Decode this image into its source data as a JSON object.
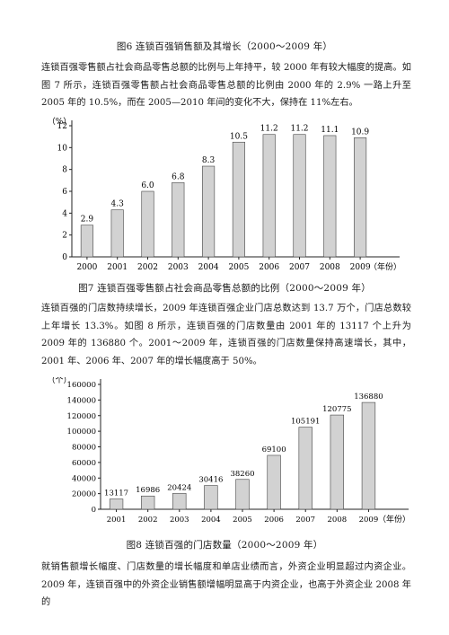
{
  "captions": {
    "fig6": "图6 连锁百强销售额及其增长（2000～2009 年）",
    "fig7": "图7 连锁百强零售额占社会商品零售总额的比例（2000～2009 年）",
    "fig8": "图8 连锁百强的门店数量（2000～2009 年）"
  },
  "paragraphs": {
    "p1": "连锁百强零售额占社会商品零售总额的比例与上年持平，较 2000 年有较大幅度的提高。如图 7 所示，连锁百强零售额占社会商品零售总额的比例由 2000 年的 2.9% 一路上升至 2005 年的 10.5%，而在 2005—2010 年间的变化不大，保持在 11%左右。",
    "p2": "连锁百强的门店数持续增长，2009 年连锁百强企业门店总数达到 13.7 万个，门店总数较上年增长 13.3%。如图 8 所示，连锁百强的门店数量由 2001 年的 13117 个上升为 2009 年的 136880 个。2001～2009 年，连锁百强的门店数量保持高速增长，其中，2001 年、2006 年、2007 年的增长幅度高于 50%。",
    "p3": "就销售额增长幅度、门店数量的增长幅度和单店业绩而言，外资企业明显超过内资企业。2009 年，连锁百强中的外资企业销售额增幅明显高于内资企业，也高于外资企业 2008 年的"
  },
  "chart_data": [
    {
      "type": "bar",
      "categories": [
        "2000",
        "2001",
        "2002",
        "2003",
        "2004",
        "2005",
        "2006",
        "2007",
        "2008",
        "2009"
      ],
      "values": [
        2.9,
        4.3,
        6.0,
        6.8,
        8.3,
        10.5,
        11.2,
        11.2,
        11.1,
        10.9
      ],
      "value_labels": [
        "2.9",
        "4.3",
        "6.0",
        "6.8",
        "8.3",
        "10.5",
        "11.2",
        "11.2",
        "11.1",
        "10.9"
      ],
      "ylabel": "%",
      "xlabel": "（年份）",
      "yticks": [
        0,
        2,
        4,
        6,
        8,
        10,
        12
      ],
      "ylim": [
        0,
        12
      ],
      "grid": false,
      "bar_color": "#d2d2d2"
    },
    {
      "type": "bar",
      "categories": [
        "2001",
        "2002",
        "2003",
        "2004",
        "2005",
        "2006",
        "2007",
        "2008",
        "2009"
      ],
      "values": [
        13117,
        16986,
        20424,
        30416,
        38260,
        69100,
        105191,
        120775,
        136880
      ],
      "value_labels": [
        "13117",
        "16986",
        "20424",
        "30416",
        "38260",
        "69100",
        "105191",
        "120775",
        "136880"
      ],
      "ylabel": "个",
      "xlabel": "（年份）",
      "yticks": [
        0,
        20000,
        40000,
        60000,
        80000,
        100000,
        120000,
        140000,
        160000
      ],
      "ylim": [
        0,
        160000
      ],
      "grid": false,
      "bar_color": "#d2d2d2"
    }
  ]
}
